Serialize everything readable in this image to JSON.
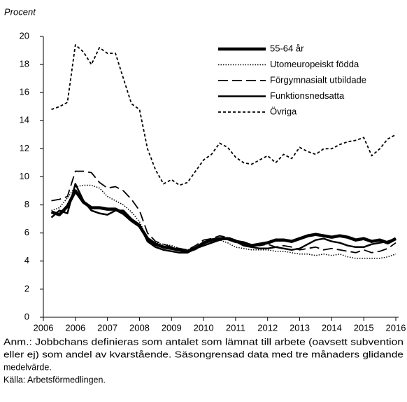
{
  "chart_data": {
    "type": "line",
    "y_label": "Procent",
    "x": [
      0.25,
      0.5,
      0.75,
      1,
      1.25,
      1.5,
      1.75,
      2,
      2.25,
      2.5,
      2.75,
      3,
      3.25,
      3.5,
      3.75,
      4,
      4.25,
      4.5,
      4.75,
      5,
      5.25,
      5.5,
      5.75,
      6,
      6.25,
      6.5,
      6.75,
      7,
      7.25,
      7.5,
      7.75,
      8,
      8.25,
      8.5,
      8.75,
      9,
      9.25,
      9.5,
      9.75,
      10,
      10.25,
      10.5,
      10.75,
      11
    ],
    "xlim": [
      0,
      11
    ],
    "xticks": [
      {
        "value": 0,
        "label": "2006"
      },
      {
        "value": 1,
        "label": "2006"
      },
      {
        "value": 2,
        "label": "2007"
      },
      {
        "value": 3,
        "label": "2008"
      },
      {
        "value": 4,
        "label": "2009"
      },
      {
        "value": 5,
        "label": "2010"
      },
      {
        "value": 6,
        "label": "2011"
      },
      {
        "value": 7,
        "label": "2012"
      },
      {
        "value": 8,
        "label": "2013"
      },
      {
        "value": 9,
        "label": "2014"
      },
      {
        "value": 10,
        "label": "2015"
      },
      {
        "value": 11,
        "label": "2016"
      }
    ],
    "ylim": [
      0,
      20
    ],
    "yticks": [
      0,
      2,
      4,
      6,
      8,
      10,
      12,
      14,
      16,
      18,
      20
    ],
    "legend": "top-right",
    "series": [
      {
        "name": "55-64 år",
        "color": "#000000",
        "style": "thick",
        "values": [
          7.5,
          7.3,
          7.9,
          9.0,
          8.2,
          7.8,
          7.8,
          7.7,
          7.7,
          7.4,
          6.9,
          6.5,
          5.6,
          5.2,
          5.0,
          4.9,
          4.8,
          4.7,
          4.9,
          5.3,
          5.5,
          5.6,
          5.6,
          5.4,
          5.3,
          5.1,
          5.2,
          5.3,
          5.5,
          5.5,
          5.4,
          5.6,
          5.8,
          5.9,
          5.8,
          5.7,
          5.8,
          5.7,
          5.5,
          5.6,
          5.4,
          5.5,
          5.3,
          5.6
        ]
      },
      {
        "name": "Utomeuropeiskt födda",
        "color": "#000000",
        "style": "dotted",
        "values": [
          7.6,
          7.8,
          8.5,
          9.3,
          9.4,
          9.4,
          9.2,
          8.6,
          8.3,
          8.0,
          7.5,
          6.8,
          5.6,
          5.3,
          5.2,
          5.1,
          4.9,
          4.8,
          5.0,
          5.3,
          5.4,
          5.5,
          5.3,
          5.0,
          4.9,
          4.8,
          4.8,
          4.8,
          4.7,
          4.7,
          4.6,
          4.5,
          4.5,
          4.4,
          4.5,
          4.4,
          4.5,
          4.3,
          4.2,
          4.2,
          4.2,
          4.2,
          4.3,
          4.5
        ]
      },
      {
        "name": "Förgymnasialt utbildade",
        "color": "#000000",
        "style": "dashed",
        "values": [
          8.3,
          8.4,
          8.6,
          10.4,
          10.4,
          10.3,
          9.6,
          9.2,
          9.3,
          9.0,
          8.4,
          7.6,
          6.0,
          5.4,
          5.2,
          5.0,
          4.9,
          4.8,
          5.1,
          5.5,
          5.6,
          5.8,
          5.7,
          5.5,
          5.2,
          5.1,
          5.1,
          5.2,
          5.0,
          5.1,
          5.0,
          4.8,
          4.9,
          5.0,
          4.8,
          4.9,
          4.8,
          4.7,
          4.6,
          4.8,
          4.6,
          4.7,
          4.9,
          5.3
        ]
      },
      {
        "name": "Funktionsnedsatta",
        "color": "#000000",
        "style": "solid",
        "values": [
          7.1,
          7.6,
          7.4,
          9.5,
          8.3,
          7.6,
          7.4,
          7.3,
          7.6,
          7.6,
          7.0,
          6.6,
          5.4,
          5.0,
          4.8,
          4.7,
          4.6,
          4.6,
          4.9,
          5.1,
          5.3,
          5.5,
          5.6,
          5.4,
          5.1,
          5.0,
          4.9,
          4.9,
          5.0,
          4.9,
          4.8,
          4.9,
          5.2,
          5.5,
          5.6,
          5.4,
          5.3,
          5.1,
          5.0,
          5.0,
          5.2,
          5.3,
          5.4,
          5.6
        ]
      },
      {
        "name": "Övriga",
        "color": "#000000",
        "style": "short-dashed",
        "values": [
          14.8,
          15.0,
          15.3,
          19.4,
          18.9,
          18.0,
          19.2,
          18.8,
          18.8,
          17.0,
          15.2,
          14.8,
          12.0,
          10.5,
          9.5,
          9.8,
          9.4,
          9.6,
          10.4,
          11.2,
          11.6,
          12.4,
          12.1,
          11.4,
          11.0,
          10.9,
          11.2,
          11.5,
          11.0,
          11.6,
          11.3,
          12.1,
          11.8,
          11.6,
          12.0,
          12.0,
          12.3,
          12.5,
          12.6,
          12.8,
          11.5,
          12.0,
          12.7,
          13.0
        ]
      }
    ],
    "notes": [
      "Anm.: Jobbchans definieras som antalet som lämnat till arbete (oavsett subvention",
      "eller ej) som andel av  kvarstående. Säsongrensad data med tre månaders glidande",
      "medelvärde.",
      "Källa: Arbetsförmedlingen."
    ]
  }
}
